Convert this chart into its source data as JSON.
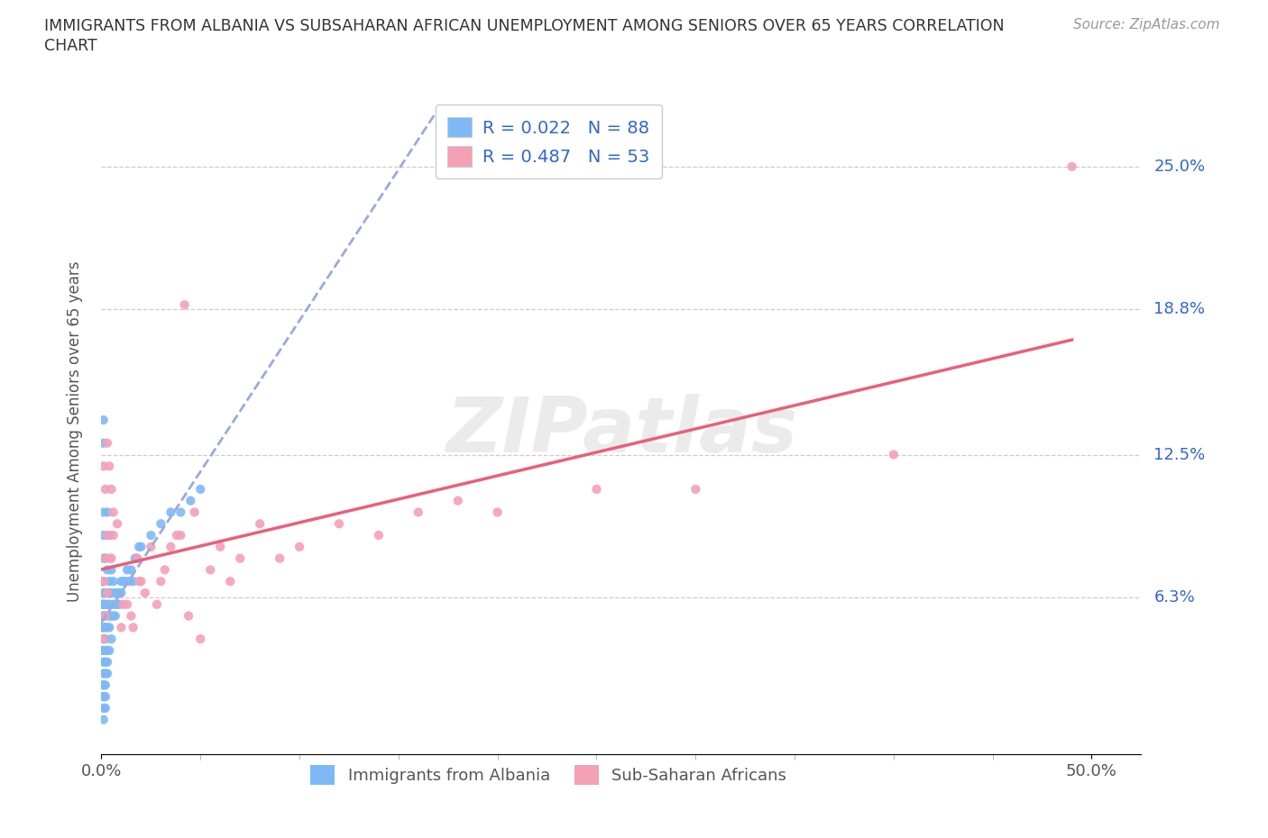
{
  "title_line1": "IMMIGRANTS FROM ALBANIA VS SUBSAHARAN AFRICAN UNEMPLOYMENT AMONG SENIORS OVER 65 YEARS CORRELATION",
  "title_line2": "CHART",
  "source": "Source: ZipAtlas.com",
  "ylabel": "Unemployment Among Seniors over 65 years",
  "xlim": [
    0.0,
    0.525
  ],
  "ylim": [
    -0.005,
    0.275
  ],
  "ytick_vals": [
    0.0,
    0.063,
    0.125,
    0.188,
    0.25
  ],
  "ytick_labels": [
    "",
    "6.3%",
    "12.5%",
    "18.8%",
    "25.0%"
  ],
  "xtick_vals": [
    0.0,
    0.5
  ],
  "xtick_labels": [
    "0.0%",
    "50.0%"
  ],
  "hlines": [
    0.063,
    0.125,
    0.188,
    0.25
  ],
  "albania_color": "#7eb8f7",
  "subsaharan_color": "#f4a0b5",
  "albania_trend_color": "#99aadd",
  "subsaharan_trend_color": "#e8607a",
  "legend_text_color": "#3366cc",
  "watermark": "ZIPatlas",
  "background_color": "#ffffff",
  "albania_scatter_x": [
    0.0,
    0.0,
    0.0,
    0.001,
    0.001,
    0.001,
    0.001,
    0.001,
    0.001,
    0.001,
    0.001,
    0.001,
    0.001,
    0.001,
    0.001,
    0.001,
    0.001,
    0.001,
    0.001,
    0.001,
    0.001,
    0.001,
    0.001,
    0.001,
    0.001,
    0.001,
    0.001,
    0.001,
    0.002,
    0.002,
    0.002,
    0.002,
    0.002,
    0.002,
    0.002,
    0.002,
    0.002,
    0.002,
    0.002,
    0.002,
    0.003,
    0.003,
    0.003,
    0.003,
    0.003,
    0.003,
    0.003,
    0.003,
    0.003,
    0.004,
    0.004,
    0.004,
    0.004,
    0.004,
    0.004,
    0.004,
    0.005,
    0.005,
    0.005,
    0.005,
    0.006,
    0.006,
    0.006,
    0.007,
    0.007,
    0.007,
    0.008,
    0.008,
    0.009,
    0.009,
    0.01,
    0.01,
    0.011,
    0.012,
    0.013,
    0.014,
    0.015,
    0.016,
    0.017,
    0.018,
    0.019,
    0.02,
    0.025,
    0.03,
    0.035,
    0.04,
    0.045,
    0.05
  ],
  "albania_scatter_y": [
    0.06,
    0.05,
    0.07,
    0.14,
    0.13,
    0.1,
    0.09,
    0.08,
    0.07,
    0.07,
    0.065,
    0.06,
    0.06,
    0.055,
    0.055,
    0.05,
    0.05,
    0.045,
    0.04,
    0.04,
    0.035,
    0.03,
    0.025,
    0.025,
    0.02,
    0.02,
    0.015,
    0.01,
    0.08,
    0.065,
    0.06,
    0.055,
    0.05,
    0.045,
    0.04,
    0.035,
    0.03,
    0.025,
    0.02,
    0.015,
    0.1,
    0.075,
    0.065,
    0.06,
    0.055,
    0.05,
    0.04,
    0.035,
    0.03,
    0.09,
    0.07,
    0.065,
    0.06,
    0.055,
    0.05,
    0.04,
    0.075,
    0.065,
    0.055,
    0.045,
    0.07,
    0.06,
    0.055,
    0.065,
    0.06,
    0.055,
    0.065,
    0.06,
    0.065,
    0.06,
    0.07,
    0.065,
    0.07,
    0.07,
    0.075,
    0.07,
    0.075,
    0.07,
    0.08,
    0.08,
    0.085,
    0.085,
    0.09,
    0.095,
    0.1,
    0.1,
    0.105,
    0.11
  ],
  "subsaharan_scatter_x": [
    0.0,
    0.001,
    0.001,
    0.001,
    0.002,
    0.002,
    0.002,
    0.003,
    0.003,
    0.003,
    0.004,
    0.004,
    0.005,
    0.005,
    0.006,
    0.006,
    0.008,
    0.01,
    0.011,
    0.013,
    0.015,
    0.016,
    0.018,
    0.019,
    0.02,
    0.022,
    0.025,
    0.028,
    0.03,
    0.032,
    0.035,
    0.038,
    0.04,
    0.042,
    0.044,
    0.047,
    0.05,
    0.055,
    0.06,
    0.065,
    0.07,
    0.08,
    0.09,
    0.1,
    0.12,
    0.14,
    0.16,
    0.18,
    0.2,
    0.25,
    0.3,
    0.4,
    0.49
  ],
  "subsaharan_scatter_y": [
    0.07,
    0.12,
    0.07,
    0.045,
    0.11,
    0.08,
    0.055,
    0.13,
    0.09,
    0.065,
    0.12,
    0.08,
    0.11,
    0.08,
    0.1,
    0.09,
    0.095,
    0.05,
    0.06,
    0.06,
    0.055,
    0.05,
    0.08,
    0.07,
    0.07,
    0.065,
    0.085,
    0.06,
    0.07,
    0.075,
    0.085,
    0.09,
    0.09,
    0.19,
    0.055,
    0.1,
    0.045,
    0.075,
    0.085,
    0.07,
    0.08,
    0.095,
    0.08,
    0.085,
    0.095,
    0.09,
    0.1,
    0.105,
    0.1,
    0.11,
    0.11,
    0.125,
    0.25
  ]
}
